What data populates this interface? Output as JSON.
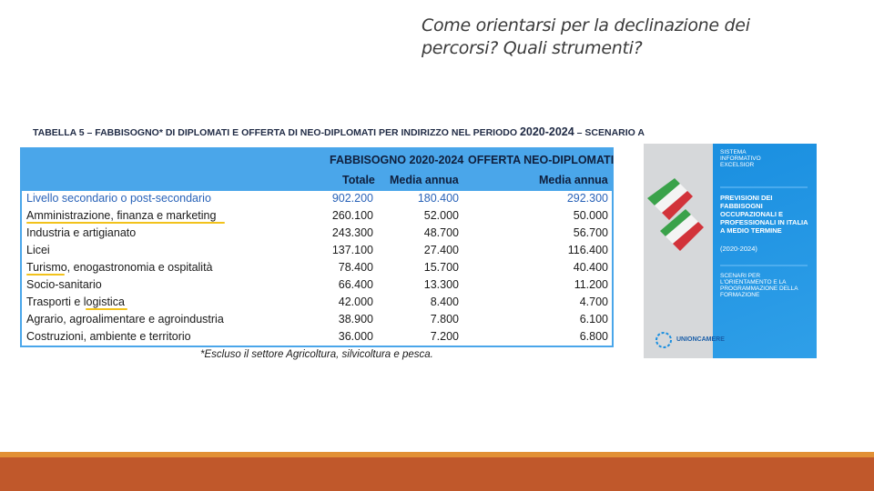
{
  "slide": {
    "title_line1": "Come orientarsi per la declinazione dei",
    "title_line2": "percorsi? Quali strumenti?"
  },
  "table": {
    "caption_part1": "TABELLA 5 – FABBISOGNO* DI DIPLOMATI E OFFERTA DI NEO-DIPLOMATI PER INDIRIZZO NEL PERIODO ",
    "caption_part2": "2020-2024",
    "caption_part3": " – SCENARIO A",
    "group_header_1": "FABBISOGNO 2020-2024",
    "group_header_2": "OFFERTA NEO-DIPLOMATI",
    "col_totale": "Totale",
    "col_media_1": "Media annua",
    "col_media_2": "Media annua",
    "rows": [
      {
        "label": "Livello secondario o post-secondario",
        "totale": "902.200",
        "media": "180.400",
        "offerta": "292.300"
      },
      {
        "label": "Amministrazione, finanza e marketing",
        "totale": "260.100",
        "media": "52.000",
        "offerta": "50.000"
      },
      {
        "label": "Industria e artigianato",
        "totale": "243.300",
        "media": "48.700",
        "offerta": "56.700"
      },
      {
        "label": "Licei",
        "totale": "137.100",
        "media": "27.400",
        "offerta": "116.400"
      },
      {
        "label": "Turismo, enogastronomia e ospitalità",
        "totale": "78.400",
        "media": "15.700",
        "offerta": "40.400"
      },
      {
        "label": "Socio-sanitario",
        "totale": "66.400",
        "media": "13.300",
        "offerta": "11.200"
      },
      {
        "label": "Trasporti e logistica",
        "totale": "42.000",
        "media": "8.400",
        "offerta": "4.700"
      },
      {
        "label": "Agrario, agroalimentare e agroindustria",
        "totale": "38.900",
        "media": "7.800",
        "offerta": "6.100"
      },
      {
        "label": "Costruzioni, ambiente e territorio",
        "totale": "36.000",
        "media": "7.200",
        "offerta": "6.800"
      }
    ],
    "footnote": "*Escluso il settore Agricoltura, silvicoltura e pesca."
  },
  "cover": {
    "series": "SISTEMA INFORMATIVO EXCELSIOR",
    "title": "PREVISIONI DEI FABBISOGNI OCCUPAZIONALI E PROFESSIONALI IN ITALIA A MEDIO TERMINE",
    "years": "(2020-2024)",
    "subtitle": "SCENARI PER L'ORIENTAMENTO E LA PROGRAMMAZIONE DELLA FORMAZIONE",
    "publisher": "UNIONCAMERE"
  },
  "colors": {
    "table_header": "#4aa6ea",
    "highlight": "#f2c21b",
    "bottom_bar": "#c0582b",
    "bottom_line": "#e29035"
  }
}
